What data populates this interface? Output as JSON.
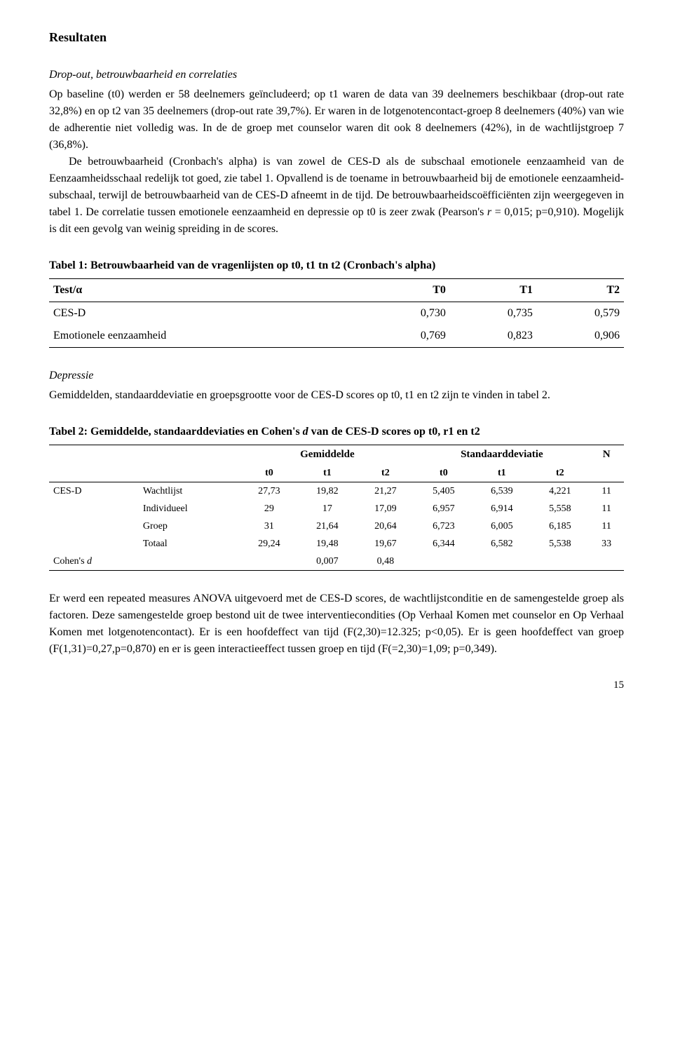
{
  "section_title": "Resultaten",
  "sub1": "Drop-out, betrouwbaarheid  en correlaties",
  "para1": "Op baseline (t0) werden er 58  deelnemers geïncludeerd; op t1 waren de data van 39 deelnemers beschikbaar (drop-out rate 32,8%) en op t2 van 35 deelnemers (drop-out rate 39,7%). Er waren in de lotgenotencontact-groep 8 deelnemers (40%) van wie de adherentie niet volledig was. In de de groep met counselor waren dit ook 8 deelnemers (42%), in de wachtlijstgroep 7 (36,8%).",
  "para1b": "De betrouwbaarheid (Cronbach's alpha) is van zowel de CES-D als de subschaal emotionele eenzaamheid van de Eenzaamheidsschaal redelijk tot goed, zie tabel 1. Opvallend is de toename in betrouwbaarheid bij de emotionele eenzaamheid-subschaal, terwijl de betrouwbaarheid van de CES-D afneemt in de tijd. De betrouwbaarheidscoëfficiënten zijn weergegeven in tabel 1. De correlatie tussen emotionele eenzaamheid en depressie op t0 is zeer zwak (Pearson's ",
  "para1b_r": "r",
  "para1b_tail": " = 0,015; p=0,910). Mogelijk is dit een gevolg van weinig spreiding in de scores.",
  "t1_caption": "Tabel 1: Betrouwbaarheid van de vragenlijsten op t0, t1 tn t2 (Cronbach's alpha)",
  "t1_head": [
    "Test/α",
    "T0",
    "T1",
    "T2"
  ],
  "t1_rows": [
    [
      "CES-D",
      "0,730",
      "0,735",
      "0,579"
    ],
    [
      "Emotionele eenzaamheid",
      "0,769",
      "0,823",
      "0,906"
    ]
  ],
  "sub2": "Depressie",
  "para2": "Gemiddelden, standaarddeviatie en groepsgrootte voor de CES-D scores op t0, t1 en t2 zijn te vinden in tabel 2.",
  "t2_caption_a": "Tabel 2: Gemiddelde, standaarddeviaties en Cohen's ",
  "t2_caption_d": "d",
  "t2_caption_b": " van de CES-D scores op t0, r1 en t2",
  "t2_group_heads": [
    "Gemiddelde",
    "Standaarddeviatie",
    "N"
  ],
  "t2_sub_heads": [
    "t0",
    "t1",
    "t2",
    "t0",
    "t1",
    "t2"
  ],
  "t2_rows": [
    [
      "CES-D",
      "Wachtlijst",
      "27,73",
      "19,82",
      "21,27",
      "5,405",
      "6,539",
      "4,221",
      "11"
    ],
    [
      "",
      "Individueel",
      "29",
      "17",
      "17,09",
      "6,957",
      "6,914",
      "5,558",
      "11"
    ],
    [
      "",
      "Groep",
      "31",
      "21,64",
      "20,64",
      "6,723",
      "6,005",
      "6,185",
      "11"
    ],
    [
      "",
      "Totaal",
      "29,24",
      "19,48",
      "19,67",
      "6,344",
      "6,582",
      "5,538",
      "33"
    ]
  ],
  "t2_cohen_label_a": "Cohen's ",
  "t2_cohen_label_d": "d",
  "t2_cohen_vals": [
    "0,007",
    "0,48"
  ],
  "para3": "Er werd een repeated measures ANOVA uitgevoerd met de CES-D scores, de wachtlijstconditie en de samengestelde groep als factoren. Deze samengestelde groep bestond uit de twee interventiecondities (Op Verhaal Komen met counselor en Op Verhaal Komen met lotgenotencontact). Er is een hoofdeffect van tijd (F(2,30)=12.325; p<0,05). Er is geen hoofdeffect van groep (F(1,31)=0,27,p=0,870) en er is geen interactieeffect tussen groep en tijd (F(=2,30)=1,09; p=0,349).",
  "page_number": "15",
  "styling": {
    "font_family": "Times New Roman",
    "body_fontsize_pt": 12,
    "heading_fontsize_pt": 13,
    "text_color": "#000000",
    "background_color": "#ffffff",
    "rule_color": "#000000",
    "table1": {
      "type": "table",
      "columns": 4,
      "rows": 2,
      "top_rule_weight": 1.5,
      "mid_rule_weight": 1,
      "bottom_rule_weight": 1.5
    },
    "table2": {
      "type": "table",
      "columns": 9,
      "data_rows": 5,
      "header_rows": 2,
      "fontsize_pt": 11,
      "rule_color": "#000000"
    }
  }
}
